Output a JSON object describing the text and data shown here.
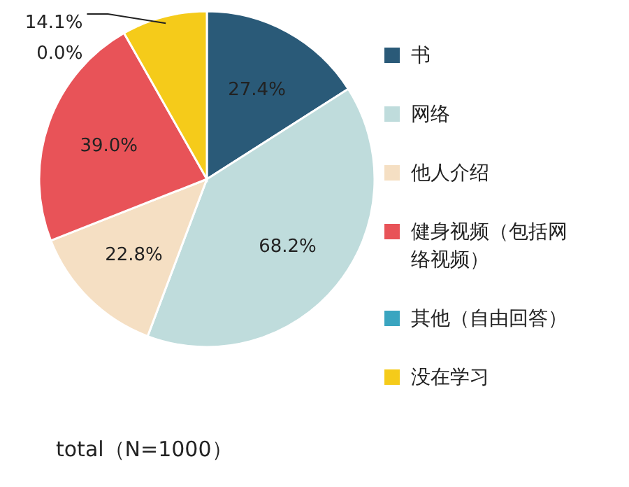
{
  "chart_data": {
    "type": "pie",
    "title": "total（N=1000）",
    "categories": [
      "书",
      "网络",
      "他人介绍",
      "健身视频（包括网络视频）",
      "其他（自由回答）",
      "没在学习"
    ],
    "values": [
      27.4,
      68.2,
      22.8,
      39.0,
      0.0,
      14.1
    ],
    "value_labels": [
      "27.4%",
      "68.2%",
      "22.8%",
      "39.0%",
      "0.0%",
      "14.1%"
    ],
    "colors": [
      "#2a5a78",
      "#bfdcdc",
      "#f5dfc3",
      "#e85358",
      "#3aa5c0",
      "#f5cb1a"
    ],
    "legend": "right"
  }
}
